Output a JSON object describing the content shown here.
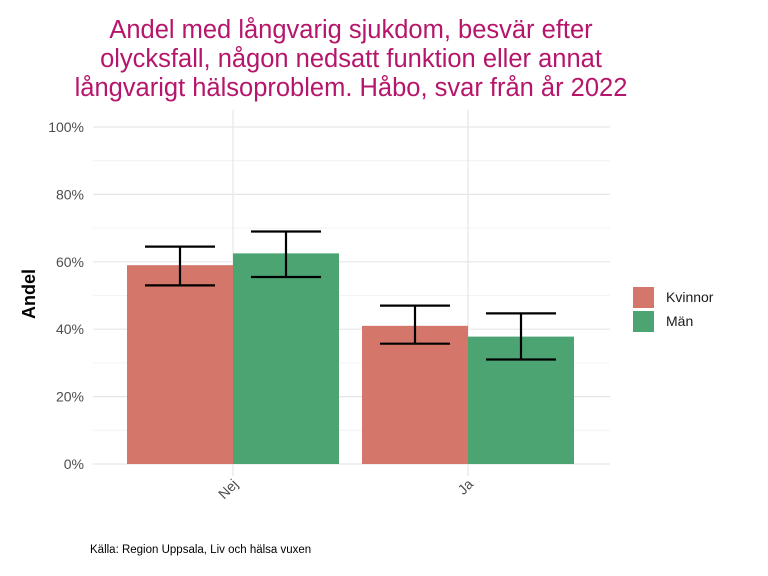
{
  "chart_data": {
    "type": "bar",
    "title_lines": [
      "Andel med långvarig sjukdom, besvär efter",
      "olycksfall, någon nedsatt funktion eller annat",
      "långvarigt hälsoproblem. Håbo, svar från år 2022"
    ],
    "xlabel": "",
    "ylabel": "Andel",
    "categories": [
      "Nej",
      "Ja"
    ],
    "series": [
      {
        "name": "Kvinnor",
        "color": "#d4776a",
        "values": [
          0.59,
          0.41
        ],
        "error_low": [
          0.53,
          0.357
        ],
        "error_high": [
          0.645,
          0.47
        ]
      },
      {
        "name": "Män",
        "color": "#4ba472",
        "values": [
          0.625,
          0.378
        ],
        "error_low": [
          0.555,
          0.31
        ],
        "error_high": [
          0.69,
          0.447
        ]
      }
    ],
    "ylim": [
      0,
      1
    ],
    "y_ticks": [
      0,
      0.2,
      0.4,
      0.6,
      0.8,
      1.0
    ],
    "y_tick_labels": [
      "0%",
      "20%",
      "40%",
      "60%",
      "80%",
      "100%"
    ],
    "grid": true,
    "legend_position": "right",
    "caption": "Källa: Region Uppsala, Liv och hälsa vuxen"
  }
}
